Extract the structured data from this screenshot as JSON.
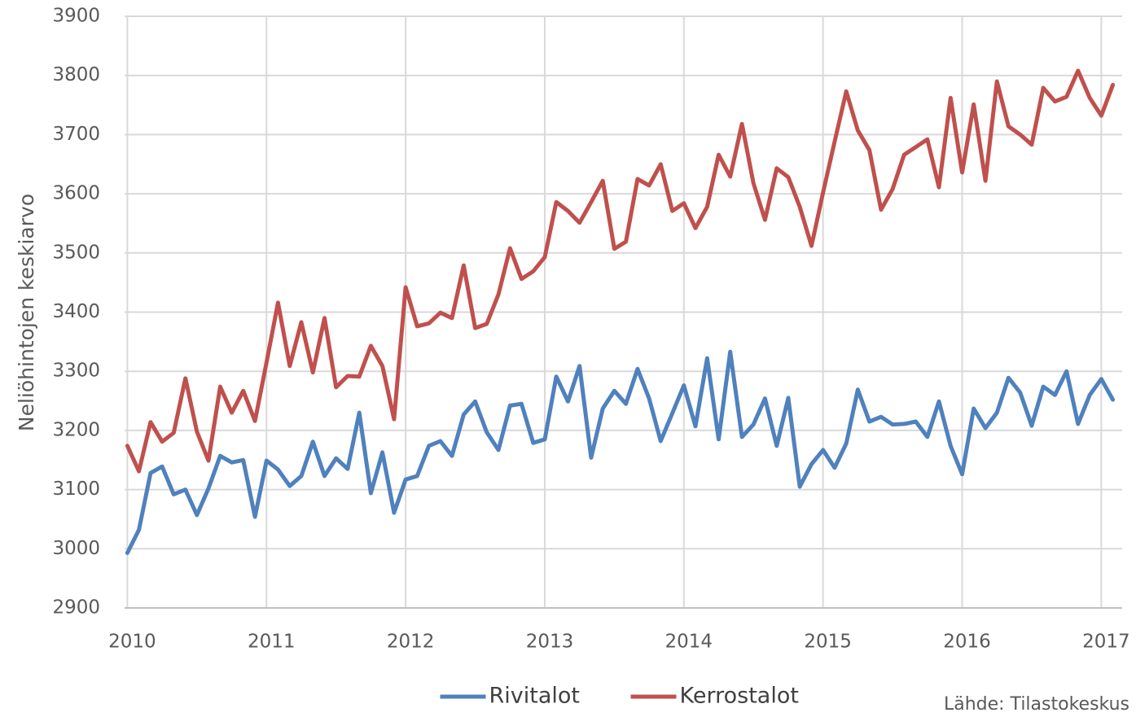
{
  "chart_data": {
    "type": "line",
    "y_label": "Neliöhintojen keskiarvo",
    "source": "Lähde: Tilastokeskus",
    "grid": true,
    "legend": "bottom",
    "xlim": [
      2009.98,
      2017.15
    ],
    "xticks": [
      2010,
      2011,
      2012,
      2013,
      2014,
      2015,
      2016,
      2017
    ],
    "ylim": [
      2900,
      3900
    ],
    "yticks": [
      2900,
      3000,
      3100,
      3200,
      3300,
      3400,
      3500,
      3600,
      3700,
      3800,
      3900
    ],
    "x": [
      2010,
      2010.083,
      2010.167,
      2010.25,
      2010.333,
      2010.417,
      2010.5,
      2010.583,
      2010.667,
      2010.75,
      2010.833,
      2010.917,
      2011,
      2011.083,
      2011.167,
      2011.25,
      2011.333,
      2011.417,
      2011.5,
      2011.583,
      2011.667,
      2011.75,
      2011.833,
      2011.917,
      2012,
      2012.083,
      2012.167,
      2012.25,
      2012.333,
      2012.417,
      2012.5,
      2012.583,
      2012.667,
      2012.75,
      2012.833,
      2012.917,
      2013,
      2013.083,
      2013.167,
      2013.25,
      2013.333,
      2013.417,
      2013.5,
      2013.583,
      2013.667,
      2013.75,
      2013.833,
      2013.917,
      2014,
      2014.083,
      2014.167,
      2014.25,
      2014.333,
      2014.417,
      2014.5,
      2014.583,
      2014.667,
      2014.75,
      2014.833,
      2014.917,
      2015,
      2015.083,
      2015.167,
      2015.25,
      2015.333,
      2015.417,
      2015.5,
      2015.583,
      2015.667,
      2015.75,
      2015.833,
      2015.917,
      2016,
      2016.083,
      2016.167,
      2016.25,
      2016.333,
      2016.417,
      2016.5,
      2016.583,
      2016.667,
      2016.75,
      2016.833,
      2016.917,
      2017,
      2017.083
    ],
    "series": [
      {
        "name": "Rivitalot",
        "color": "#4f81bd",
        "values": [
          2993,
          3032,
          3128,
          3139,
          3092,
          3100,
          3057,
          3102,
          3157,
          3146,
          3150,
          3054,
          3149,
          3134,
          3106,
          3123,
          3181,
          3123,
          3153,
          3135,
          3230,
          3094,
          3163,
          3061,
          3117,
          3123,
          3174,
          3182,
          3157,
          3227,
          3249,
          3197,
          3167,
          3242,
          3245,
          3179,
          3185,
          3291,
          3249,
          3309,
          3154,
          3237,
          3267,
          3245,
          3304,
          3254,
          3182,
          3229,
          3276,
          3207,
          3322,
          3185,
          3333,
          3189,
          3210,
          3254,
          3174,
          3255,
          3105,
          3143,
          3167,
          3137,
          3178,
          3269,
          3215,
          3223,
          3210,
          3211,
          3215,
          3189,
          3249,
          3174,
          3126,
          3237,
          3204,
          3230,
          3289,
          3264,
          3208,
          3274,
          3260,
          3300,
          3211,
          3260,
          3287,
          3252
        ]
      },
      {
        "name": "Kerrostalot",
        "color": "#c0504d",
        "values": [
          3174,
          3131,
          3214,
          3181,
          3196,
          3288,
          3198,
          3149,
          3274,
          3230,
          3267,
          3216,
          3315,
          3416,
          3309,
          3383,
          3298,
          3390,
          3273,
          3292,
          3291,
          3343,
          3309,
          3219,
          3442,
          3376,
          3381,
          3399,
          3390,
          3479,
          3373,
          3380,
          3430,
          3508,
          3456,
          3469,
          3493,
          3586,
          3571,
          3551,
          3586,
          3622,
          3507,
          3519,
          3625,
          3614,
          3650,
          3571,
          3584,
          3542,
          3578,
          3666,
          3629,
          3718,
          3618,
          3556,
          3643,
          3628,
          3578,
          3512,
          3602,
          3688,
          3773,
          3707,
          3674,
          3573,
          3608,
          3666,
          3679,
          3692,
          3611,
          3762,
          3636,
          3751,
          3622,
          3790,
          3714,
          3700,
          3683,
          3779,
          3756,
          3764,
          3808,
          3762,
          3732,
          3784
        ]
      }
    ]
  }
}
